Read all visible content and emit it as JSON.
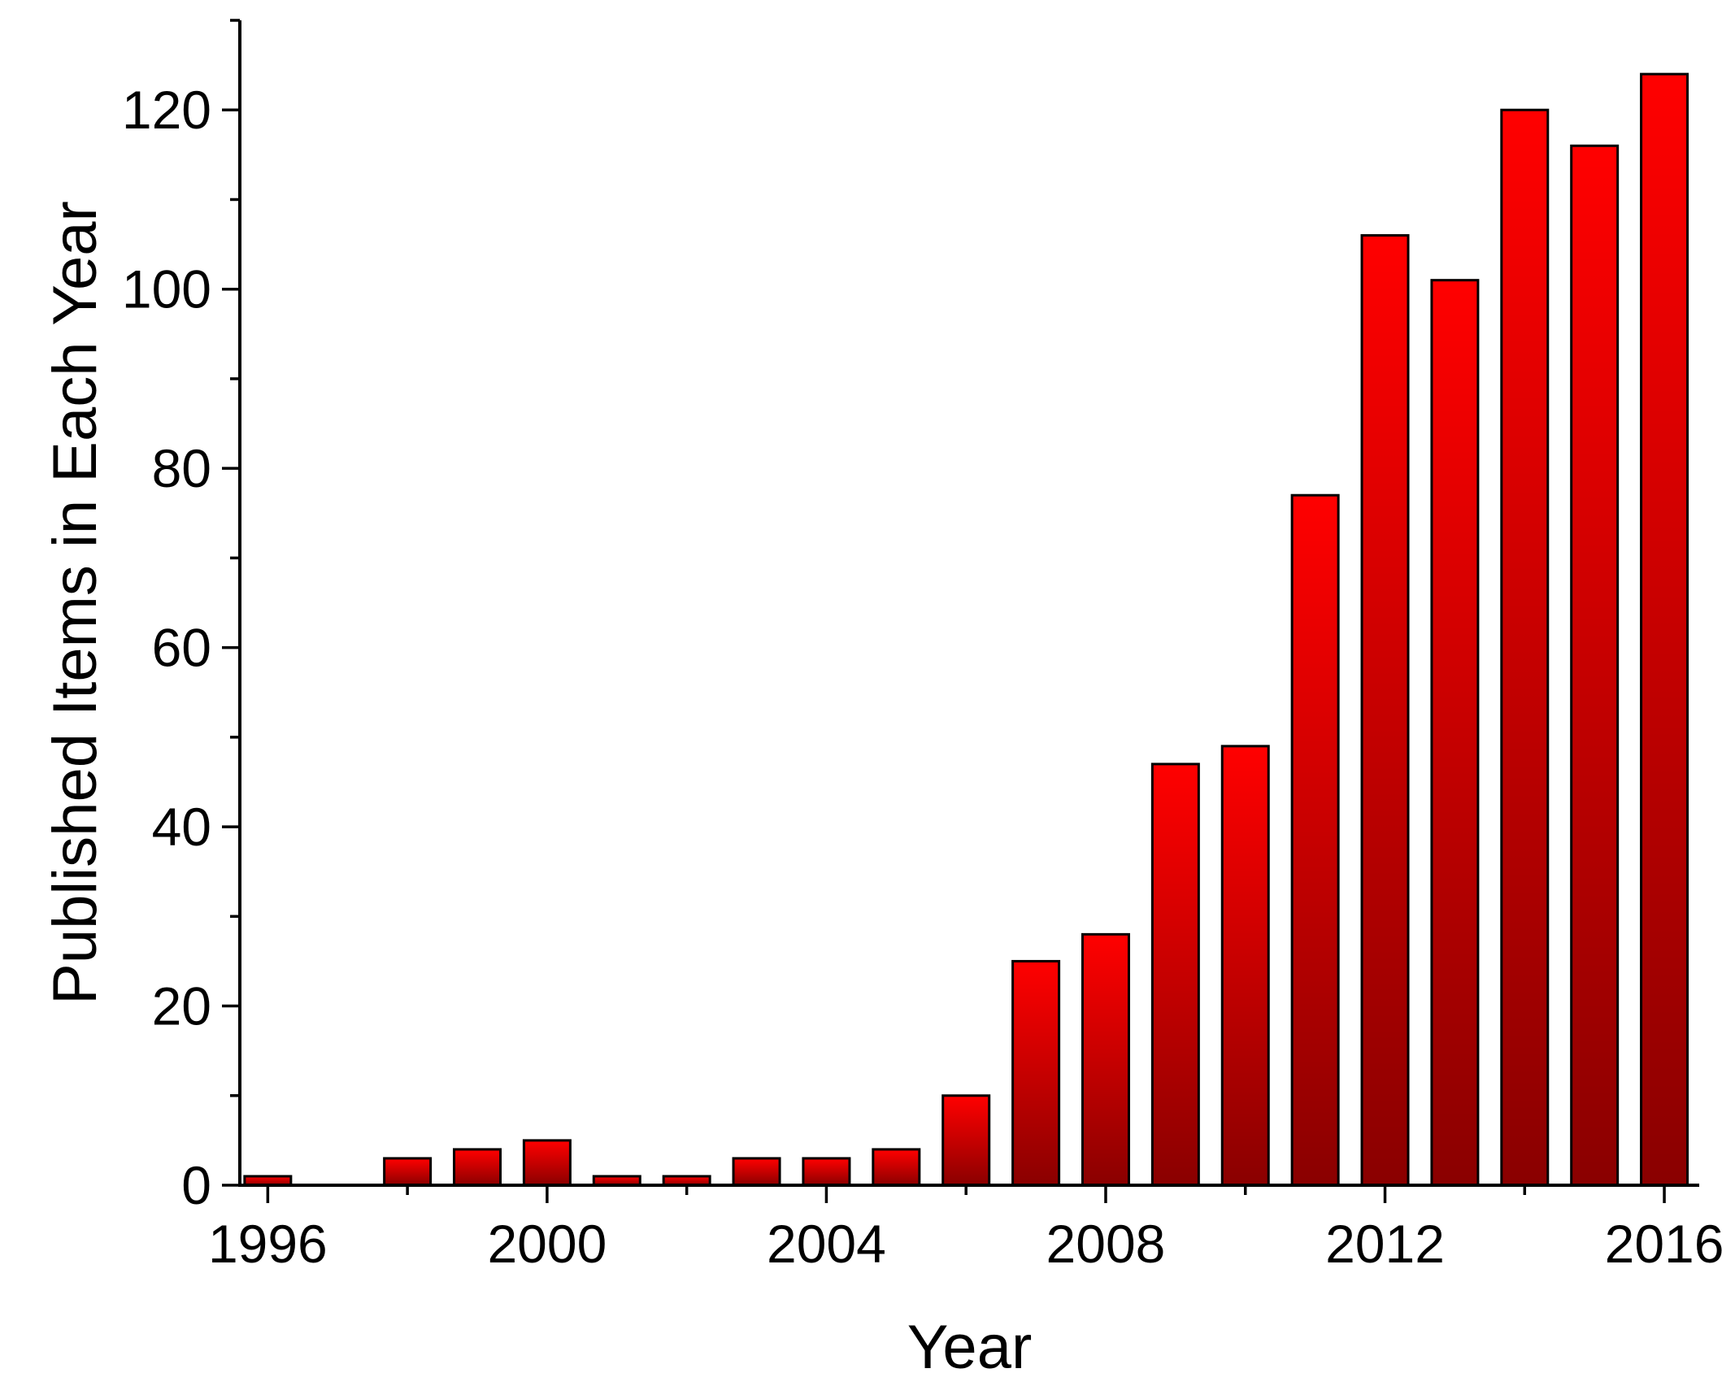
{
  "chart_data": {
    "type": "bar",
    "categories": [
      "1996",
      "1997",
      "1998",
      "1999",
      "2000",
      "2001",
      "2002",
      "2003",
      "2004",
      "2005",
      "2006",
      "2007",
      "2008",
      "2009",
      "2010",
      "2011",
      "2012",
      "2013",
      "2014",
      "2015",
      "2016"
    ],
    "series": [
      {
        "values": [
          1,
          0,
          3,
          4,
          5,
          1,
          1,
          3,
          3,
          4,
          10,
          25,
          28,
          47,
          49,
          77,
          106,
          101,
          120,
          116,
          124
        ]
      }
    ],
    "title": "",
    "xlabel": "Year",
    "ylabel": "Published Items in Each Year",
    "xlim": [
      1995.6,
      2016.5
    ],
    "ylim": [
      0,
      130
    ],
    "x_major_ticks": [
      1996,
      2000,
      2004,
      2008,
      2012,
      2016
    ],
    "x_tick_labels": [
      "1996",
      "2000",
      "2004",
      "2008",
      "2012",
      "2016"
    ],
    "y_major_ticks": [
      0,
      20,
      40,
      60,
      80,
      100,
      120
    ],
    "y_tick_labels": [
      "0",
      "20",
      "40",
      "60",
      "80",
      "100",
      "120"
    ],
    "grid": false,
    "legend": "none",
    "colors": {
      "bar_top": "#ff0000",
      "bar_mid": "#cc0000",
      "bar_bottom": "#8a0000",
      "axis": "#000000"
    }
  }
}
